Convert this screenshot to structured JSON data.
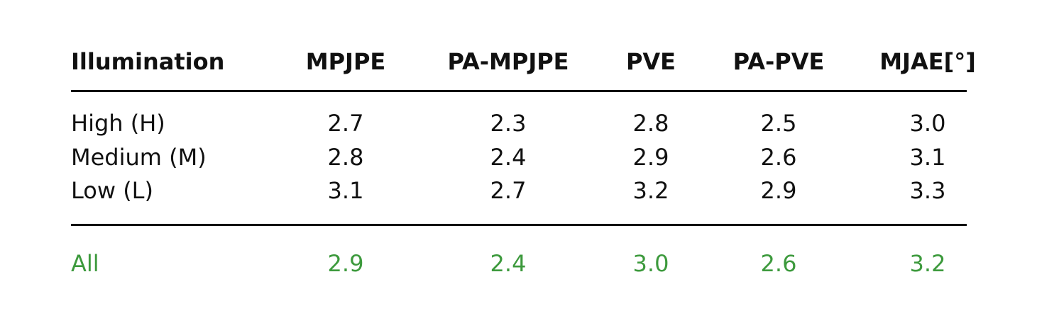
{
  "table": {
    "header": [
      "Illumination",
      "MPJPE",
      "PA-MPJPE",
      "PVE",
      "PA-PVE",
      "MJAE[°]"
    ],
    "rows": [
      [
        "High (H)",
        "2.7",
        "2.3",
        "2.8",
        "2.5",
        "3.0"
      ],
      [
        "Medium (M)",
        "2.8",
        "2.4",
        "2.9",
        "2.6",
        "3.1"
      ],
      [
        "Low (L)",
        "3.1",
        "2.7",
        "3.2",
        "2.9",
        "3.3"
      ]
    ],
    "total": [
      "All",
      "2.9",
      "2.4",
      "3.0",
      "2.6",
      "3.2"
    ]
  }
}
